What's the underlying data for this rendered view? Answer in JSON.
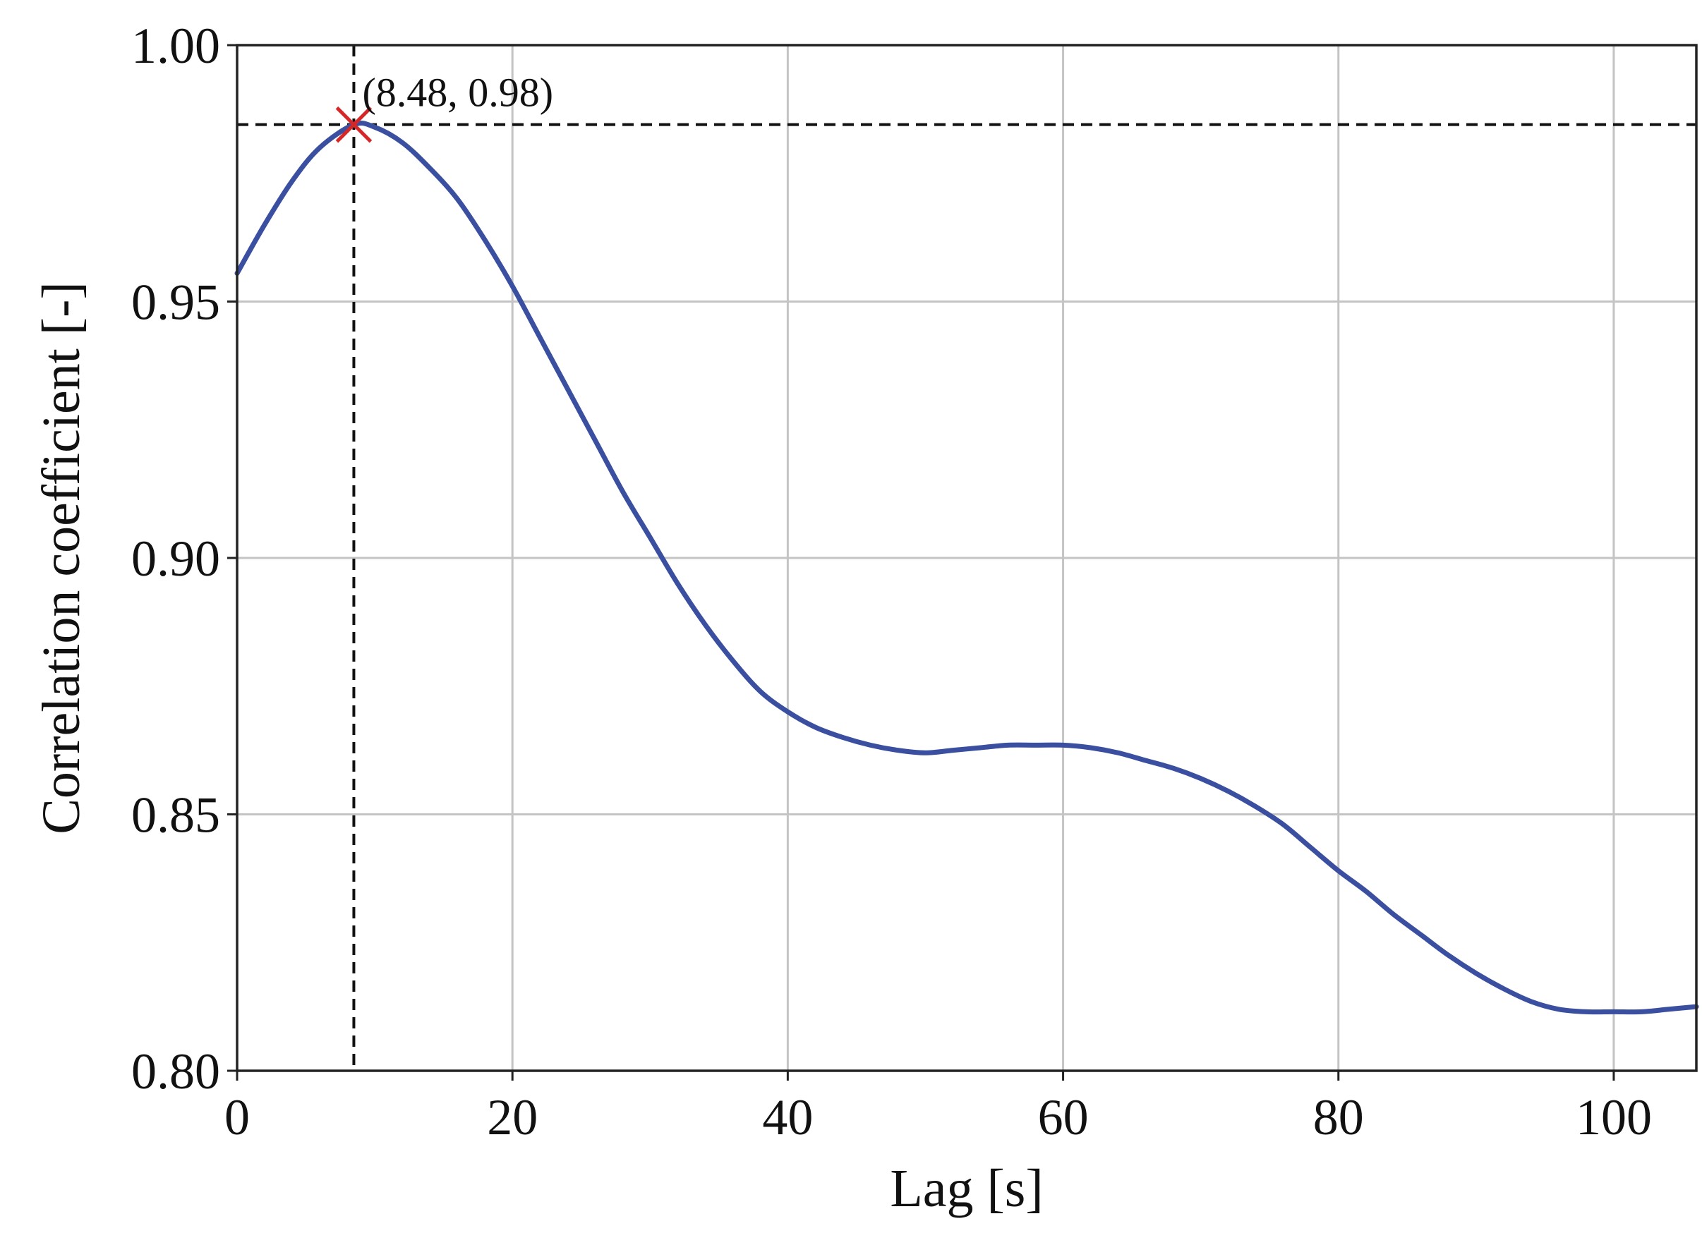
{
  "chart_data": {
    "type": "line",
    "title": "",
    "xlabel": "Lag [s]",
    "ylabel": "Correlation coefficient [-]",
    "xlim": [
      0,
      106
    ],
    "ylim": [
      0.8,
      1.0
    ],
    "grid": true,
    "xticks": [
      0,
      20,
      40,
      60,
      80,
      100
    ],
    "xtick_labels": [
      "0",
      "20",
      "40",
      "60",
      "80",
      "100"
    ],
    "yticks": [
      0.8,
      0.85,
      0.9,
      0.95,
      1.0
    ],
    "ytick_labels": [
      "0.80",
      "0.85",
      "0.90",
      "0.95",
      "1.00"
    ],
    "series": [
      {
        "line_color": "#3a4fa0",
        "x": [
          0,
          2,
          4,
          6,
          8.48,
          10,
          12,
          14,
          16,
          18,
          20,
          22,
          24,
          26,
          28,
          30,
          32,
          34,
          36,
          38,
          40,
          42,
          44,
          46,
          48,
          50,
          52,
          54,
          56,
          58,
          60,
          62,
          64,
          66,
          68,
          70,
          72,
          74,
          76,
          78,
          80,
          82,
          84,
          86,
          88,
          90,
          92,
          94,
          96,
          98,
          100,
          102,
          104,
          106
        ],
        "y": [
          0.9555,
          0.965,
          0.9735,
          0.98,
          0.9845,
          0.984,
          0.981,
          0.976,
          0.97,
          0.962,
          0.953,
          0.943,
          0.933,
          0.923,
          0.913,
          0.904,
          0.895,
          0.887,
          0.88,
          0.874,
          0.87,
          0.867,
          0.865,
          0.8635,
          0.8625,
          0.862,
          0.8625,
          0.863,
          0.8635,
          0.8635,
          0.8635,
          0.863,
          0.862,
          0.8605,
          0.859,
          0.857,
          0.8545,
          0.8515,
          0.848,
          0.8435,
          0.839,
          0.835,
          0.8305,
          0.8265,
          0.8225,
          0.819,
          0.816,
          0.8135,
          0.812,
          0.8115,
          0.8115,
          0.8115,
          0.812,
          0.8125
        ]
      }
    ],
    "peak": {
      "x": 8.48,
      "y": 0.9845,
      "label": "(8.48, 0.98)",
      "marker_color": "#d62728"
    }
  }
}
